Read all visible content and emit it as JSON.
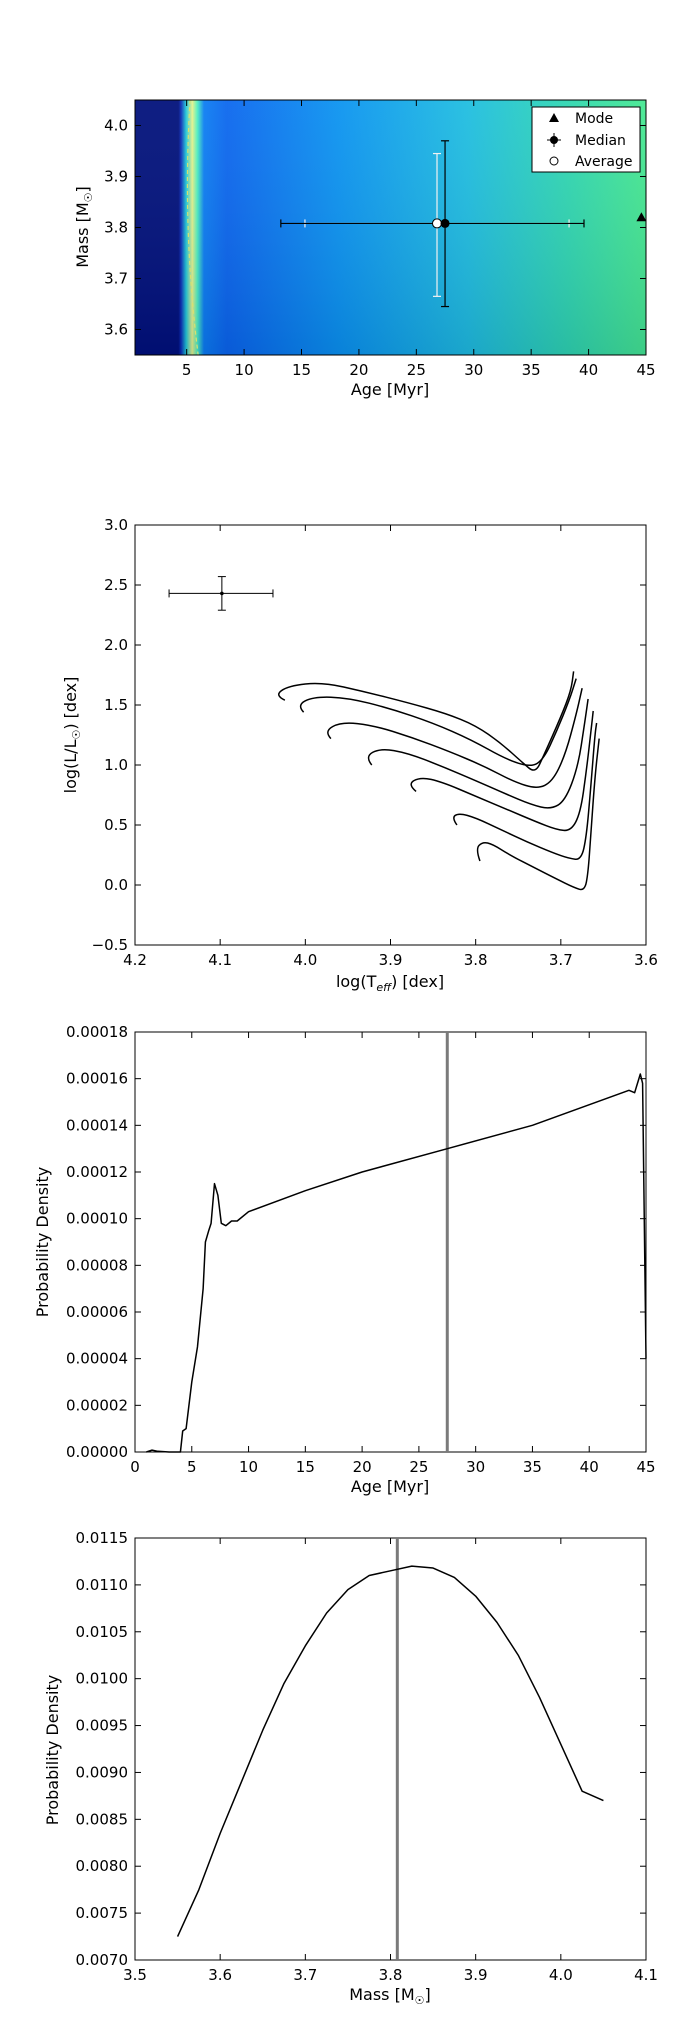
{
  "chart_data": [
    {
      "type": "heatmap",
      "xlabel": "Age [Myr]",
      "ylabel_main": "Mass [M",
      "ylabel_sub": "☉",
      "ylabel_end": "]",
      "xlim": [
        0.5,
        45
      ],
      "ylim": [
        3.55,
        4.05
      ],
      "x_ticks": [
        5,
        10,
        15,
        20,
        25,
        30,
        35,
        40,
        45
      ],
      "y_ticks": [
        3.6,
        3.7,
        3.8,
        3.9,
        4.0
      ],
      "legend": {
        "placement": "top-right",
        "entries": [
          {
            "label": "Mode",
            "marker": "triangle"
          },
          {
            "label": "Median",
            "marker": "filled-circle-errorbar"
          },
          {
            "label": "Average",
            "marker": "open-circle"
          }
        ]
      },
      "points": {
        "mode": {
          "x": 44.6,
          "y": 3.82
        },
        "median": {
          "x": 27.5,
          "y": 3.808,
          "x_err": [
            13.2,
            39.6
          ],
          "y_err": [
            3.645,
            3.97
          ]
        },
        "average": {
          "x": 26.8,
          "y": 3.808,
          "x_err": [
            15.3,
            38.3
          ],
          "y_err": [
            3.665,
            3.945
          ]
        }
      },
      "colors": {
        "dark": "#00107a",
        "mid": "#0a78f5",
        "bright": "#3fe88c",
        "ridge": "#e6f38a"
      }
    },
    {
      "type": "line",
      "xlabel_main": "log(T",
      "xlabel_sub": "eff",
      "xlabel_end": ") [dex]",
      "ylabel_main": "log(L/L",
      "ylabel_sub": "☉",
      "ylabel_end": ") [dex]",
      "xlim": [
        4.2,
        3.6
      ],
      "ylim": [
        -0.5,
        3.0
      ],
      "x_ticks": [
        4.2,
        4.1,
        4.0,
        3.9,
        3.8,
        3.7,
        3.6
      ],
      "x_tick_labels": [
        "4.2",
        "4.1",
        "4.0",
        "3.9",
        "3.8",
        "3.7",
        "3.6"
      ],
      "y_ticks": [
        -0.5,
        0.0,
        0.5,
        1.0,
        1.5,
        2.0,
        2.5,
        3.0
      ],
      "y_tick_labels": [
        "−0.5",
        "0.0",
        "0.5",
        "1.0",
        "1.5",
        "2.0",
        "2.5",
        "3.0"
      ],
      "observation": {
        "x": 4.098,
        "y": 2.43,
        "x_err": [
          4.16,
          4.038
        ],
        "y_err": [
          2.29,
          2.57
        ]
      },
      "series": [
        {
          "values": [
            [
              3.795,
              0.2
            ],
            [
              3.8,
              0.3
            ],
            [
              3.792,
              0.36
            ],
            [
              3.78,
              0.34
            ],
            [
              3.76,
              0.25
            ],
            [
              3.73,
              0.14
            ],
            [
              3.705,
              0.05
            ],
            [
              3.685,
              -0.02
            ],
            [
              3.672,
              -0.05
            ],
            [
              3.668,
              0.1
            ],
            [
              3.665,
              0.4
            ],
            [
              3.66,
              0.9
            ],
            [
              3.655,
              1.22
            ]
          ]
        },
        {
          "values": [
            [
              3.822,
              0.5
            ],
            [
              3.828,
              0.56
            ],
            [
              3.82,
              0.6
            ],
            [
              3.8,
              0.56
            ],
            [
              3.77,
              0.46
            ],
            [
              3.74,
              0.36
            ],
            [
              3.71,
              0.27
            ],
            [
              3.69,
              0.22
            ],
            [
              3.676,
              0.21
            ],
            [
              3.67,
              0.4
            ],
            [
              3.665,
              0.8
            ],
            [
              3.66,
              1.25
            ],
            [
              3.658,
              1.35
            ]
          ]
        },
        {
          "values": [
            [
              3.87,
              0.78
            ],
            [
              3.88,
              0.84
            ],
            [
              3.865,
              0.9
            ],
            [
              3.84,
              0.86
            ],
            [
              3.8,
              0.74
            ],
            [
              3.76,
              0.62
            ],
            [
              3.73,
              0.53
            ],
            [
              3.705,
              0.46
            ],
            [
              3.688,
              0.45
            ],
            [
              3.677,
              0.6
            ],
            [
              3.67,
              0.95
            ],
            [
              3.664,
              1.32
            ],
            [
              3.662,
              1.45
            ]
          ]
        },
        {
          "values": [
            [
              3.922,
              1.0
            ],
            [
              3.93,
              1.07
            ],
            [
              3.912,
              1.14
            ],
            [
              3.88,
              1.1
            ],
            [
              3.84,
              0.99
            ],
            [
              3.8,
              0.87
            ],
            [
              3.765,
              0.76
            ],
            [
              3.735,
              0.67
            ],
            [
              3.712,
              0.63
            ],
            [
              3.695,
              0.7
            ],
            [
              3.68,
              0.98
            ],
            [
              3.672,
              1.35
            ],
            [
              3.668,
              1.55
            ]
          ]
        },
        {
          "values": [
            [
              3.97,
              1.22
            ],
            [
              3.978,
              1.28
            ],
            [
              3.958,
              1.36
            ],
            [
              3.92,
              1.33
            ],
            [
              3.875,
              1.23
            ],
            [
              3.83,
              1.11
            ],
            [
              3.79,
              0.99
            ],
            [
              3.755,
              0.86
            ],
            [
              3.728,
              0.8
            ],
            [
              3.71,
              0.86
            ],
            [
              3.695,
              1.08
            ],
            [
              3.682,
              1.42
            ],
            [
              3.675,
              1.64
            ]
          ]
        },
        {
          "values": [
            [
              4.002,
              1.44
            ],
            [
              4.01,
              1.5
            ],
            [
              3.99,
              1.57
            ],
            [
              3.95,
              1.56
            ],
            [
              3.9,
              1.47
            ],
            [
              3.85,
              1.35
            ],
            [
              3.805,
              1.21
            ],
            [
              3.765,
              1.05
            ],
            [
              3.735,
              0.98
            ],
            [
              3.72,
              1.05
            ],
            [
              3.705,
              1.28
            ],
            [
              3.69,
              1.54
            ],
            [
              3.682,
              1.72
            ]
          ]
        },
        {
          "values": [
            [
              4.024,
              1.54
            ],
            [
              4.036,
              1.58
            ],
            [
              4.02,
              1.66
            ],
            [
              3.98,
              1.69
            ],
            [
              3.93,
              1.61
            ],
            [
              3.88,
              1.52
            ],
            [
              3.835,
              1.43
            ],
            [
              3.8,
              1.33
            ],
            [
              3.77,
              1.18
            ],
            [
              3.745,
              1.02
            ],
            [
              3.73,
              0.93
            ],
            [
              3.72,
              1.08
            ],
            [
              3.7,
              1.4
            ],
            [
              3.688,
              1.62
            ],
            [
              3.685,
              1.78
            ]
          ]
        }
      ]
    },
    {
      "type": "line",
      "xlabel": "Age [Myr]",
      "ylabel": "Probability Density",
      "xlim": [
        0,
        45
      ],
      "ylim": [
        0,
        0.00018
      ],
      "x_ticks": [
        0,
        5,
        10,
        15,
        20,
        25,
        30,
        35,
        40,
        45
      ],
      "y_ticks": [
        0,
        2e-05,
        4e-05,
        6e-05,
        8e-05,
        0.0001,
        0.00012,
        0.00014,
        0.00016,
        0.00018
      ],
      "y_tick_labels": [
        "0.00000",
        "0.00002",
        "0.00004",
        "0.00006",
        "0.00008",
        "0.00010",
        "0.00012",
        "0.00014",
        "0.00016",
        "0.00018"
      ],
      "vline": 27.5,
      "series": [
        {
          "values": [
            [
              1.0,
              0.0
            ],
            [
              1.5,
              8e-07
            ],
            [
              2.0,
              3e-07
            ],
            [
              3.0,
              0.0
            ],
            [
              4.0,
              0.0
            ],
            [
              4.2,
              9e-06
            ],
            [
              4.5,
              1e-05
            ],
            [
              4.7,
              1.8e-05
            ],
            [
              5.0,
              3e-05
            ],
            [
              5.5,
              4.5e-05
            ],
            [
              6.0,
              7e-05
            ],
            [
              6.2,
              9e-05
            ],
            [
              6.5,
              9.5e-05
            ],
            [
              6.7,
              9.8e-05
            ],
            [
              7.0,
              0.000115
            ],
            [
              7.3,
              0.00011
            ],
            [
              7.6,
              9.8e-05
            ],
            [
              8.0,
              9.7e-05
            ],
            [
              8.5,
              9.9e-05
            ],
            [
              9.0,
              9.9e-05
            ],
            [
              10.0,
              0.000103
            ],
            [
              15.0,
              0.000112
            ],
            [
              20.0,
              0.00012
            ],
            [
              27.5,
              0.00013
            ],
            [
              35.0,
              0.00014
            ],
            [
              43.5,
              0.000155
            ],
            [
              44.0,
              0.000154
            ],
            [
              44.5,
              0.000162
            ],
            [
              44.7,
              0.000158
            ],
            [
              45.0,
              4e-05
            ]
          ]
        }
      ]
    },
    {
      "type": "line",
      "xlabel_main": "Mass [M",
      "xlabel_sub": "☉",
      "xlabel_end": "]",
      "ylabel": "Probability Density",
      "xlim": [
        3.5,
        4.1
      ],
      "ylim": [
        0.007,
        0.0115
      ],
      "x_ticks": [
        3.5,
        3.6,
        3.7,
        3.8,
        3.9,
        4.0,
        4.1
      ],
      "y_ticks": [
        0.007,
        0.0075,
        0.008,
        0.0085,
        0.009,
        0.0095,
        0.01,
        0.0105,
        0.011,
        0.0115
      ],
      "y_tick_labels": [
        "0.0070",
        "0.0075",
        "0.0080",
        "0.0085",
        "0.0090",
        "0.0095",
        "0.0100",
        "0.0105",
        "0.0110",
        "0.0115"
      ],
      "vline": 3.808,
      "series": [
        {
          "values": [
            [
              3.55,
              0.00725
            ],
            [
              3.575,
              0.00775
            ],
            [
              3.6,
              0.00835
            ],
            [
              3.625,
              0.0089
            ],
            [
              3.65,
              0.00945
            ],
            [
              3.675,
              0.00995
            ],
            [
              3.7,
              0.01035
            ],
            [
              3.725,
              0.0107
            ],
            [
              3.75,
              0.01095
            ],
            [
              3.775,
              0.0111
            ],
            [
              3.8,
              0.01115
            ],
            [
              3.825,
              0.0112
            ],
            [
              3.85,
              0.01118
            ],
            [
              3.875,
              0.01108
            ],
            [
              3.9,
              0.01088
            ],
            [
              3.925,
              0.0106
            ],
            [
              3.95,
              0.01025
            ],
            [
              3.975,
              0.0098
            ],
            [
              4.0,
              0.0093
            ],
            [
              4.025,
              0.0088
            ],
            [
              4.05,
              0.0087
            ]
          ]
        }
      ]
    }
  ]
}
